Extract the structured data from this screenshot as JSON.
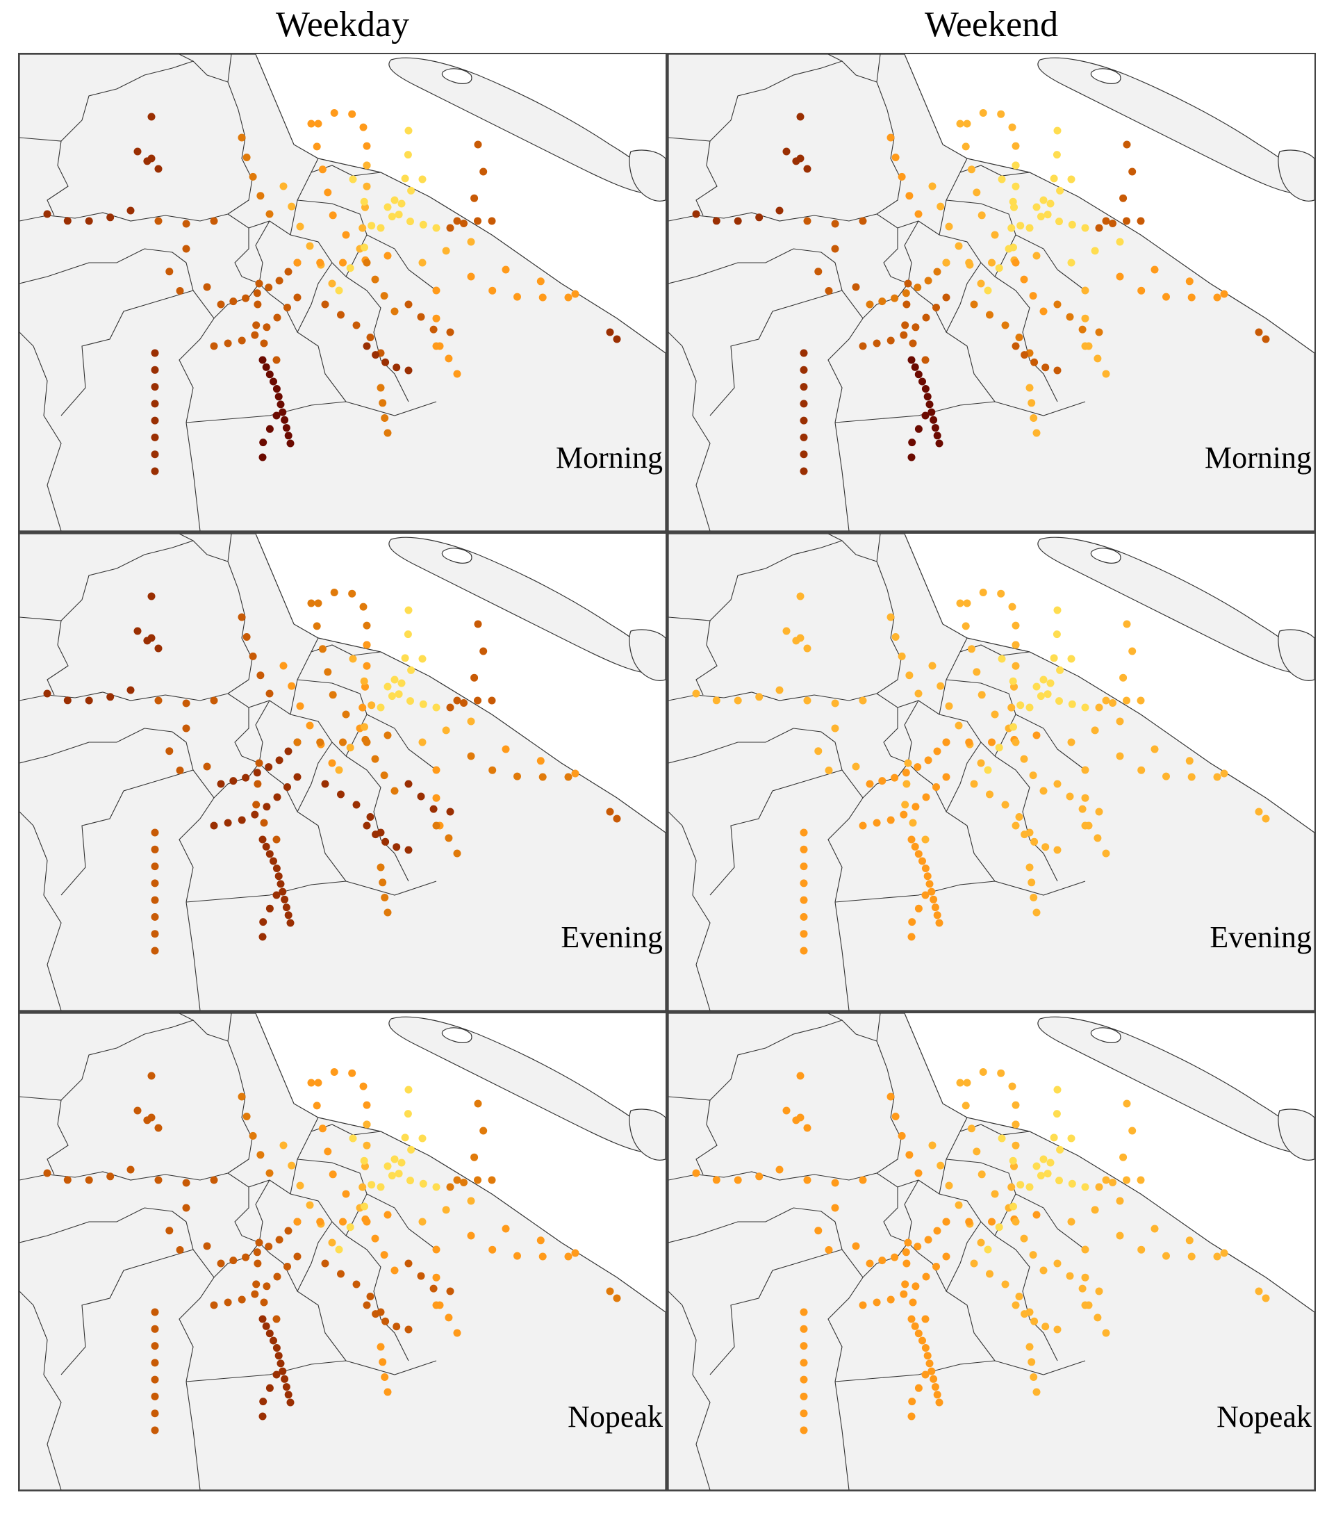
{
  "column_titles": [
    "Weekday",
    "Weekend"
  ],
  "row_labels": [
    "Morning",
    "Evening",
    "Nopeak"
  ],
  "colors": {
    "land": "#f2f2f2",
    "water": "#ffffff",
    "boundary": "#333333",
    "scale": [
      "#ffff80",
      "#ffdd50",
      "#ffb42e",
      "#ff9a1a",
      "#e07a0a",
      "#c85a05",
      "#9a2f02",
      "#6b0a00"
    ]
  },
  "panels": [
    {
      "id": "weekday-morning",
      "column": "Weekday",
      "row": "Morning"
    },
    {
      "id": "weekend-morning",
      "column": "Weekend",
      "row": "Morning"
    },
    {
      "id": "weekday-evening",
      "column": "Weekday",
      "row": "Evening"
    },
    {
      "id": "weekend-evening",
      "column": "Weekend",
      "row": "Evening"
    },
    {
      "id": "weekday-nopeak",
      "column": "Weekday",
      "row": "Nopeak"
    },
    {
      "id": "weekend-nopeak",
      "column": "Weekend",
      "row": "Nopeak"
    }
  ]
}
